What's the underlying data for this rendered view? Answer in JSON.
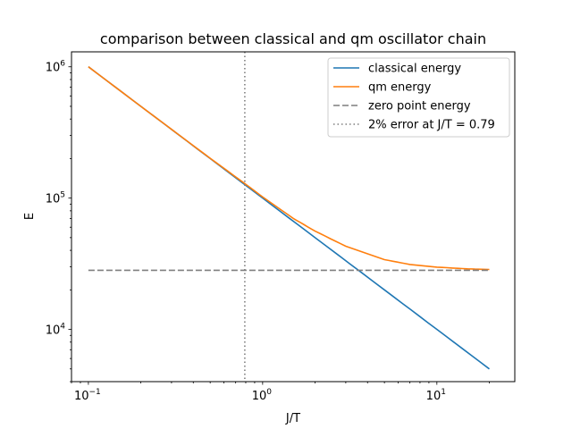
{
  "chart_data": {
    "type": "line",
    "title": "comparison between classical and qm oscillator chain",
    "xlabel": "J/T",
    "ylabel": "E",
    "xscale": "log",
    "yscale": "log",
    "xlim": [
      0.08,
      28
    ],
    "ylim": [
      4000,
      1300000
    ],
    "grid": false,
    "legend_position": "top-right",
    "x_ticks": [
      {
        "value": 0.1,
        "base": "10",
        "exp": "−1"
      },
      {
        "value": 1,
        "base": "10",
        "exp": "0"
      },
      {
        "value": 10,
        "base": "10",
        "exp": "1"
      }
    ],
    "y_ticks": [
      {
        "value": 10000,
        "base": "10",
        "exp": "4"
      },
      {
        "value": 100000,
        "base": "10",
        "exp": "5"
      },
      {
        "value": 1000000,
        "base": "10",
        "exp": "6"
      }
    ],
    "series": [
      {
        "name": "classical energy",
        "color": "#1f77b4",
        "style": "solid",
        "x": [
          0.1,
          0.2,
          0.5,
          0.79,
          1,
          2,
          5,
          10,
          20
        ],
        "y": [
          1000000,
          500000,
          200000,
          126582,
          100000,
          50000,
          20000,
          10000,
          5000
        ]
      },
      {
        "name": "qm energy",
        "color": "#ff7f0e",
        "style": "solid",
        "x": [
          0.1,
          0.2,
          0.3,
          0.5,
          0.79,
          1,
          1.5,
          2,
          3,
          5,
          7,
          10,
          15,
          20
        ],
        "y": [
          1000000,
          500000,
          334000,
          201000,
          129000,
          102000,
          70000,
          56000,
          43000,
          34000,
          31200,
          29800,
          28900,
          28600
        ]
      },
      {
        "name": "zero point energy",
        "color": "#7f7f7f",
        "style": "dashed",
        "x": [
          0.1,
          20
        ],
        "y": [
          28200,
          28200
        ]
      }
    ],
    "vlines": [
      {
        "name": "2% error at J/T = 0.79",
        "color": "#7f7f7f",
        "style": "dotted",
        "x": 0.79
      }
    ]
  }
}
